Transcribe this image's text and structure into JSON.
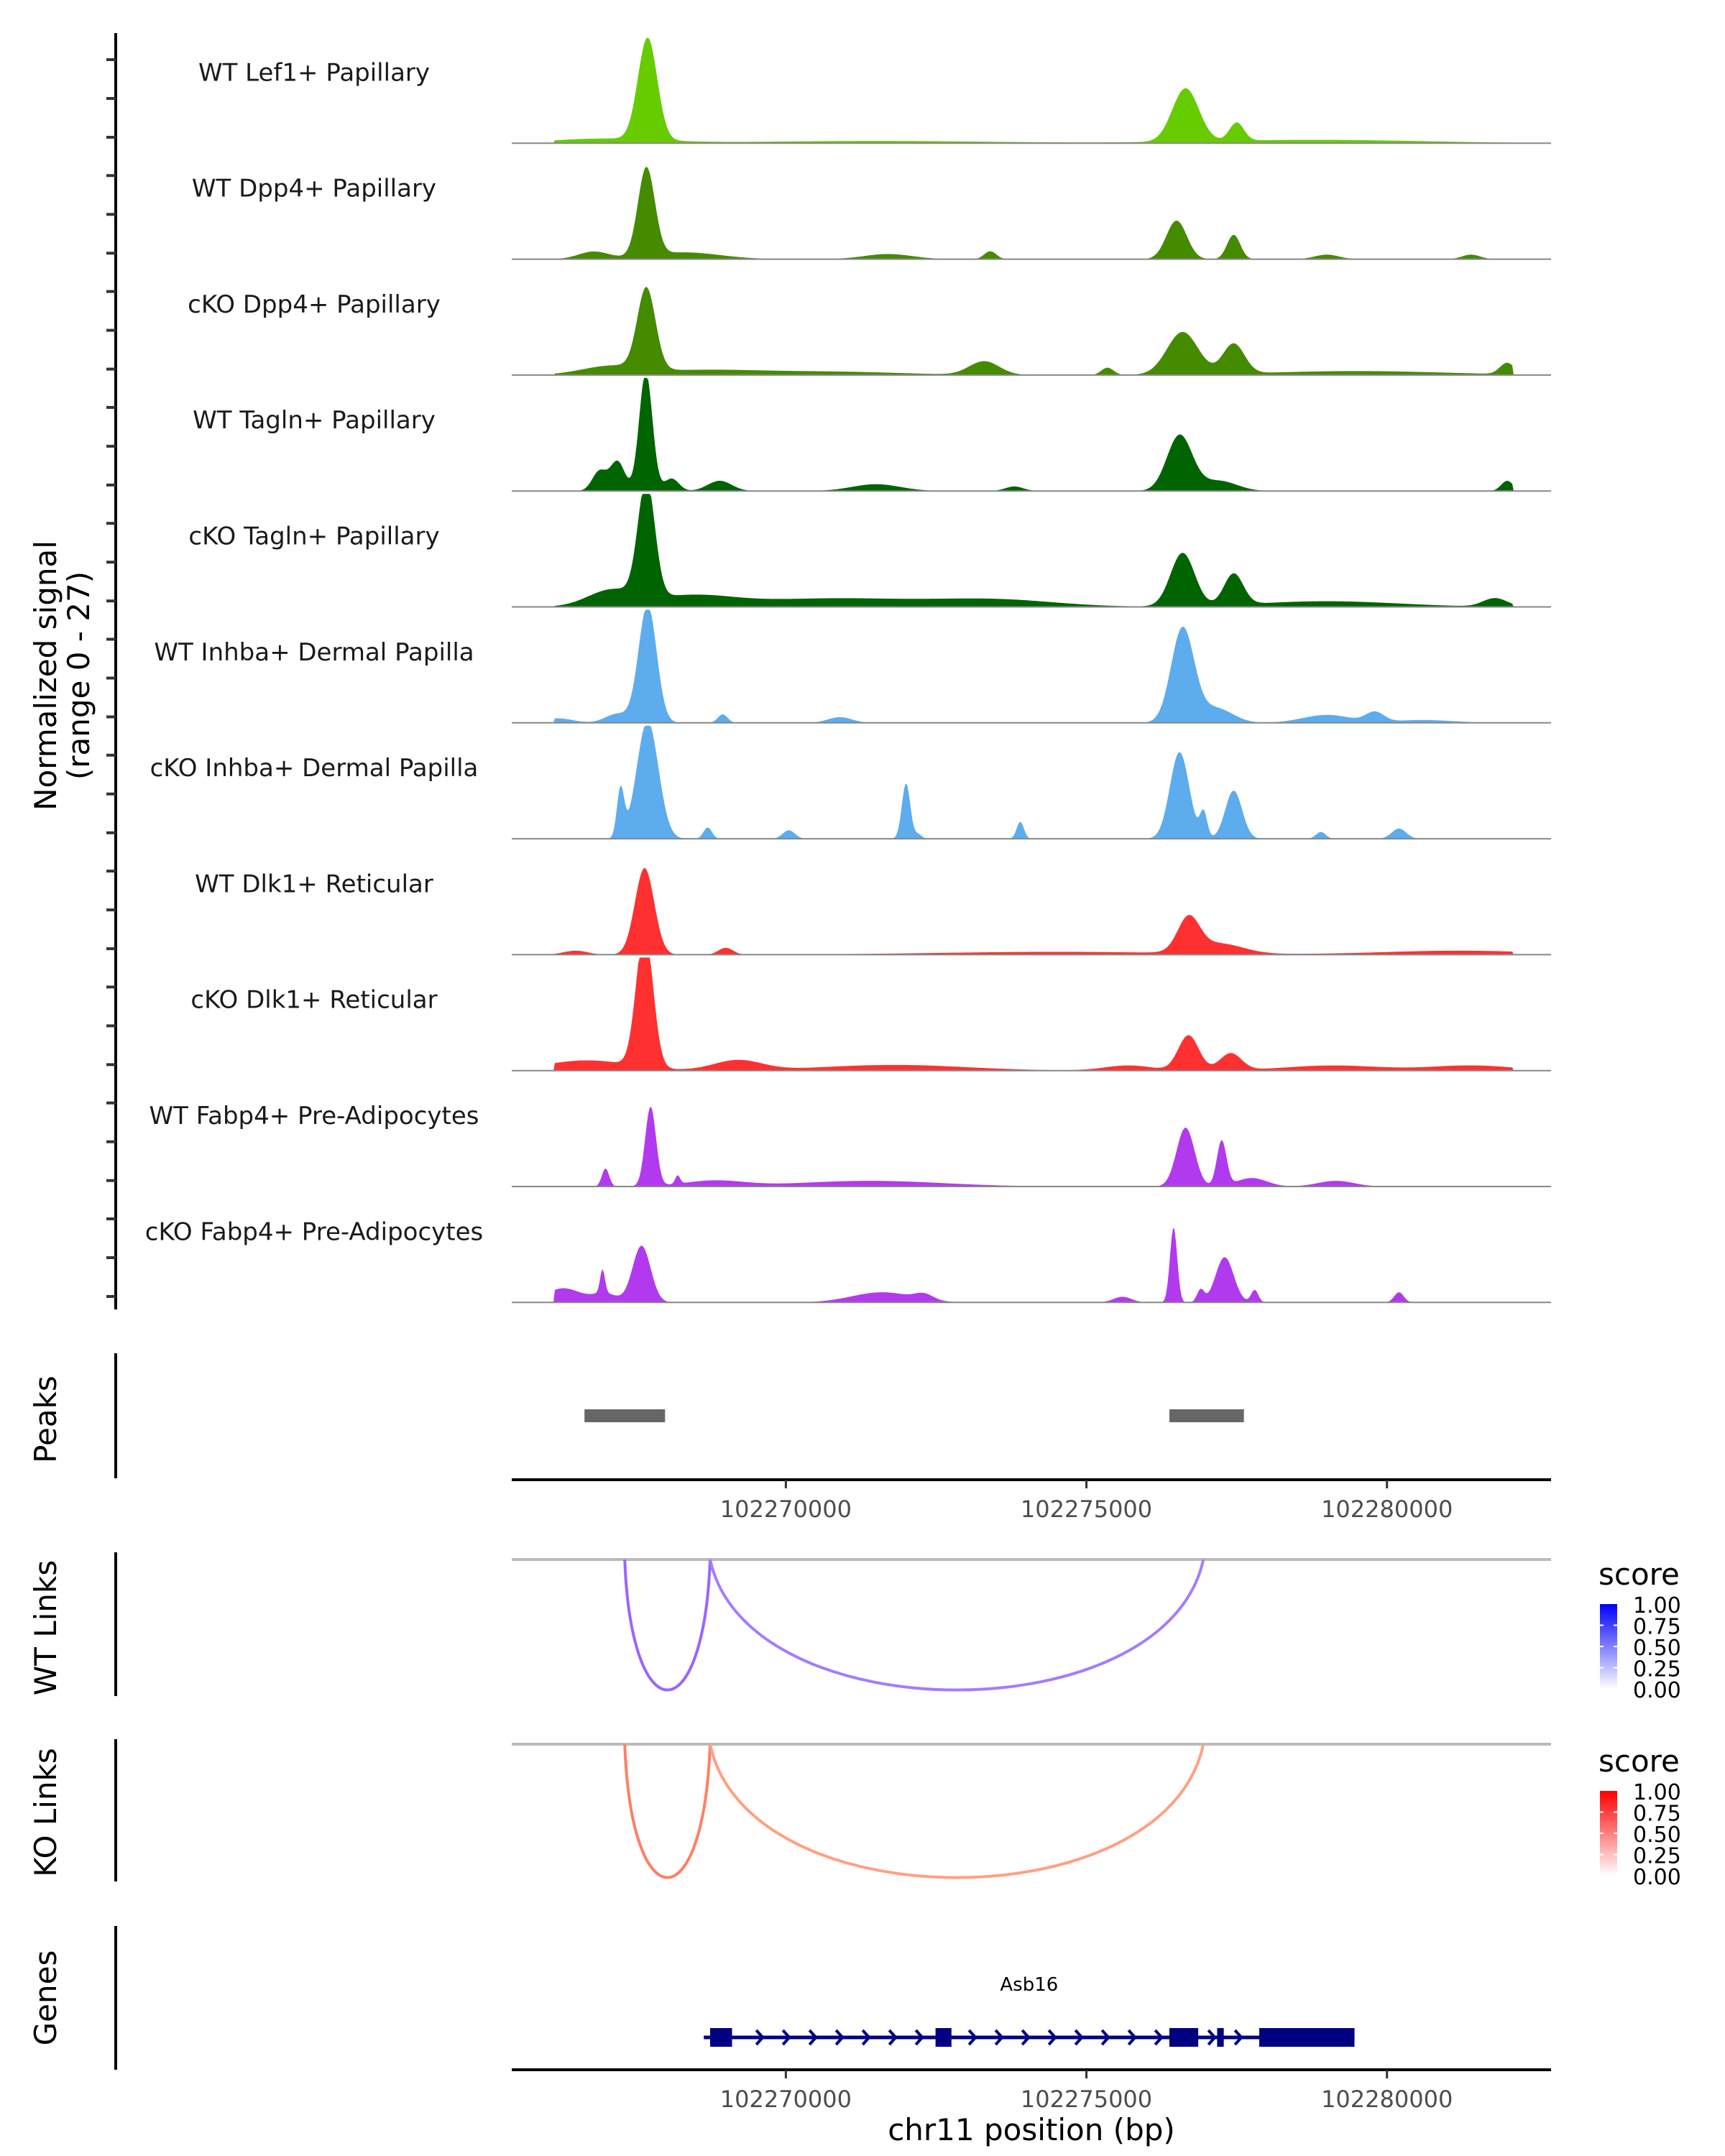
{
  "chart_data": {
    "type": "area",
    "title": "",
    "xlabel": "chr11 position (bp)",
    "ylabel": "Normalized signal\n(range 0 - 27)",
    "ylabel_lines": [
      "Normalized signal",
      "(range 0 - 27)"
    ],
    "ylim": [
      0,
      27
    ],
    "xlim": [
      102265440,
      102282730
    ],
    "x_ticks": [
      102270000,
      102275000,
      102280000
    ],
    "x_tick_labels": [
      "102270000",
      "102275000",
      "102280000"
    ],
    "grid": false,
    "coverage_tracks": [
      {
        "name": "WT Lef1+ Papillary",
        "color": "#66CC00",
        "peaks": [
          [
            102267700,
            18,
            160
          ],
          [
            102276650,
            9.4,
            220
          ],
          [
            102277500,
            3.2,
            120
          ],
          [
            102267000,
            0.8,
            900
          ],
          [
            102278800,
            0.6,
            1800
          ],
          [
            102271500,
            0.4,
            2000
          ]
        ]
      },
      {
        "name": "WT Dpp4+ Papillary",
        "color": "#458B00",
        "peaks": [
          [
            102267680,
            15.6,
            140
          ],
          [
            102276500,
            6.8,
            170
          ],
          [
            102277450,
            4.3,
            110
          ],
          [
            102266800,
            1.3,
            250
          ],
          [
            102268300,
            1.2,
            600
          ],
          [
            102271700,
            0.9,
            400
          ],
          [
            102273400,
            1.4,
            100
          ],
          [
            102279000,
            0.8,
            200
          ],
          [
            102281400,
            0.8,
            150
          ]
        ]
      },
      {
        "name": "cKO Dpp4+ Papillary",
        "color": "#458B00",
        "peaks": [
          [
            102267680,
            14.3,
            150
          ],
          [
            102276600,
            7.5,
            260
          ],
          [
            102277450,
            5.3,
            180
          ],
          [
            102267100,
            1.5,
            500
          ],
          [
            102268600,
            0.8,
            900
          ],
          [
            102273300,
            2.4,
            250
          ],
          [
            102275350,
            1.3,
            100
          ],
          [
            102282000,
            2.0,
            120
          ],
          [
            102270700,
            0.6,
            1200
          ],
          [
            102279500,
            0.7,
            1500
          ]
        ]
      },
      {
        "name": "WT Tagln+ Papillary",
        "color": "#006400",
        "peaks": [
          [
            102267670,
            21,
            110
          ],
          [
            102276550,
            9.8,
            210
          ],
          [
            102267200,
            5.2,
            120
          ],
          [
            102266900,
            3.5,
            120
          ],
          [
            102268100,
            2.2,
            120
          ],
          [
            102268900,
            1.8,
            200
          ],
          [
            102271500,
            1.2,
            400
          ],
          [
            102277200,
            1.8,
            300
          ],
          [
            102282000,
            1.8,
            100
          ],
          [
            102273800,
            0.8,
            150
          ]
        ]
      },
      {
        "name": "cKO Tagln+ Papillary",
        "color": "#006400",
        "peaks": [
          [
            102267680,
            20.5,
            140
          ],
          [
            102276600,
            9.4,
            200
          ],
          [
            102277450,
            5.5,
            160
          ],
          [
            102267100,
            2.8,
            400
          ],
          [
            102268400,
            1.8,
            700
          ],
          [
            102270800,
            1.5,
            1400
          ],
          [
            102273500,
            1.2,
            1000
          ],
          [
            102279000,
            1.0,
            1200
          ],
          [
            102281800,
            1.5,
            200
          ]
        ]
      },
      {
        "name": "WT Inhba+ Dermal Papilla",
        "color": "#5CACEE",
        "peaks": [
          [
            102267700,
            20.8,
            150
          ],
          [
            102276600,
            16.6,
            190
          ],
          [
            102277150,
            2.6,
            280
          ],
          [
            102267200,
            1.6,
            200
          ],
          [
            102268950,
            1.5,
            80
          ],
          [
            102270900,
            1.0,
            200
          ],
          [
            102279000,
            1.4,
            400
          ],
          [
            102279800,
            1.7,
            150
          ],
          [
            102266200,
            0.8,
            250
          ],
          [
            102280600,
            0.5,
            500
          ]
        ]
      },
      {
        "name": "cKO Inhba+ Dermal Papilla",
        "color": "#5CACEE",
        "peaks": [
          [
            102267700,
            20.8,
            180
          ],
          [
            102267250,
            8.5,
            60
          ],
          [
            102272000,
            9.8,
            70
          ],
          [
            102276550,
            15.3,
            160
          ],
          [
            102277450,
            8.5,
            140
          ],
          [
            102276950,
            4.5,
            60
          ],
          [
            102273900,
            3.0,
            60
          ],
          [
            102268700,
            2.0,
            70
          ],
          [
            102270050,
            1.5,
            100
          ],
          [
            102278900,
            1.2,
            80
          ],
          [
            102280200,
            1.8,
            120
          ],
          [
            102272200,
            0.8,
            60
          ]
        ]
      },
      {
        "name": "WT Dlk1+ Reticular",
        "color": "#FF3030",
        "peaks": [
          [
            102267650,
            15.3,
            160
          ],
          [
            102276700,
            5.9,
            180
          ],
          [
            102277200,
            1.8,
            400
          ],
          [
            102269000,
            1.2,
            120
          ],
          [
            102266500,
            0.7,
            200
          ],
          [
            102281200,
            0.7,
            1300
          ],
          [
            102274500,
            0.5,
            2000
          ]
        ]
      },
      {
        "name": "cKO Dlk1+ Reticular",
        "color": "#FF3030",
        "peaks": [
          [
            102267650,
            24,
            140
          ],
          [
            102276700,
            6.2,
            170
          ],
          [
            102277400,
            3.0,
            180
          ],
          [
            102266700,
            1.8,
            700
          ],
          [
            102269200,
            1.8,
            400
          ],
          [
            102271800,
            1.0,
            1200
          ],
          [
            102275700,
            0.9,
            400
          ],
          [
            102279100,
            0.9,
            800
          ],
          [
            102281400,
            0.9,
            700
          ]
        ]
      },
      {
        "name": "WT Fabp4+ Pre-Adipocytes",
        "color": "#B23AEE",
        "peaks": [
          [
            102267750,
            14,
            90
          ],
          [
            102276650,
            10.4,
            150
          ],
          [
            102277250,
            8.0,
            80
          ],
          [
            102267000,
            3.2,
            60
          ],
          [
            102277750,
            1.5,
            250
          ],
          [
            102268800,
            1.0,
            500
          ],
          [
            102271400,
            1.0,
            1200
          ],
          [
            102279150,
            1.0,
            300
          ],
          [
            102268200,
            1.5,
            40
          ]
        ]
      },
      {
        "name": "cKO Fabp4+ Pre-Adipocytes",
        "color": "#B23AEE",
        "peaks": [
          [
            102267600,
            10,
            150
          ],
          [
            102276450,
            13.3,
            60
          ],
          [
            102277300,
            8.0,
            150
          ],
          [
            102266950,
            4.2,
            40
          ],
          [
            102266300,
            2.5,
            300
          ],
          [
            102267000,
            1.5,
            200
          ],
          [
            102271600,
            1.8,
            500
          ],
          [
            102272300,
            1.0,
            150
          ],
          [
            102275600,
            1.0,
            150
          ],
          [
            102276900,
            2.2,
            60
          ],
          [
            102277800,
            2.2,
            60
          ],
          [
            102280200,
            1.8,
            80
          ]
        ]
      }
    ],
    "peaks_track": {
      "label": "Peaks",
      "color": "#666666",
      "regions": [
        [
          102266650,
          102267990
        ],
        [
          102276380,
          102277620
        ]
      ]
    },
    "links": [
      {
        "label": "WT Links",
        "legend_title": "score",
        "low_color": "#FFFFFF",
        "high_color": "#0000FF",
        "arcs": [
          {
            "start": 102267320,
            "end": 102268740,
            "score": 0.6,
            "color": "#9966FF"
          },
          {
            "start": 102268740,
            "end": 102276945,
            "score": 0.55,
            "color": "#A57BFF"
          }
        ]
      },
      {
        "label": "KO Links",
        "legend_title": "score",
        "low_color": "#FFFFFF",
        "high_color": "#FF0000",
        "arcs": [
          {
            "start": 102267320,
            "end": 102268740,
            "score": 0.55,
            "color": "#FF7F66"
          },
          {
            "start": 102268740,
            "end": 102276945,
            "score": 0.45,
            "color": "#FFA080"
          }
        ]
      }
    ],
    "legend_ticks": [
      "1.00",
      "0.75",
      "0.50",
      "0.25",
      "0.00"
    ],
    "legend_placement": "right",
    "genes": {
      "label": "Genes",
      "color": "#000080",
      "name": "Asb16",
      "strand": "+",
      "start": 102268635,
      "end": 102279460,
      "exons": [
        [
          102268740,
          102269105
        ],
        [
          102272490,
          102272755
        ],
        [
          102276380,
          102276860
        ],
        [
          102277175,
          102277285
        ],
        [
          102277875,
          102279460
        ]
      ]
    }
  }
}
